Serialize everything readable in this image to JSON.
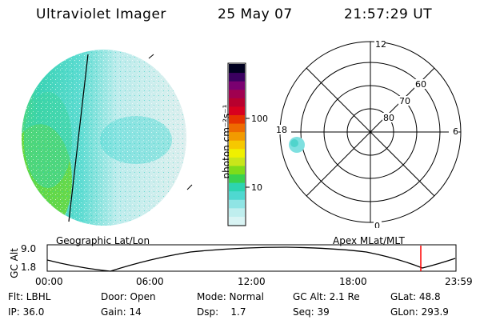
{
  "header": {
    "instrument": "Ultraviolet Imager",
    "date": "25 May 07",
    "time": "21:57:29 UT"
  },
  "colorbar": {
    "unit_label": "photon cm⁻²s⁻¹",
    "ticks": [
      "100",
      "10"
    ],
    "colors": [
      "#d9f4f4",
      "#bfeeee",
      "#8fe4e4",
      "#4fd8d0",
      "#2dd4b0",
      "#39d24f",
      "#7fdc1a",
      "#c8e61a",
      "#f0f000",
      "#f6c800",
      "#f29a00",
      "#ee6a00",
      "#e63200",
      "#d8001e",
      "#b8002e",
      "#a00050",
      "#7a0070",
      "#3a0060",
      "#000020"
    ]
  },
  "polar": {
    "lat_labels": [
      "80",
      "70",
      "60"
    ],
    "mlt_labels": {
      "top": "12",
      "right": "6",
      "bottom": "0",
      "left": "18"
    }
  },
  "timeline": {
    "left_label": "Geographic Lat/Lon",
    "right_label": "Apex MLat/MLT",
    "axis_label": "GC Alt",
    "y_ticks": [
      "9.0",
      "1.8"
    ],
    "x_ticks": [
      "00:00",
      "06:00",
      "12:00",
      "18:00",
      "23:59"
    ],
    "marker_color": "#ff0000"
  },
  "info": {
    "row1": {
      "flt": "Flt: LBHL",
      "door": "Door: Open",
      "mode": "Mode: Normal",
      "gcalt": "GC Alt: 2.1 Re",
      "glat": "GLat:  48.8"
    },
    "row2": {
      "ip": "IP: 36.0",
      "gain": "Gain: 14",
      "dsp": "Dsp:    1.7",
      "seq": "Seq: 39",
      "glon": "GLon: 293.9"
    }
  }
}
